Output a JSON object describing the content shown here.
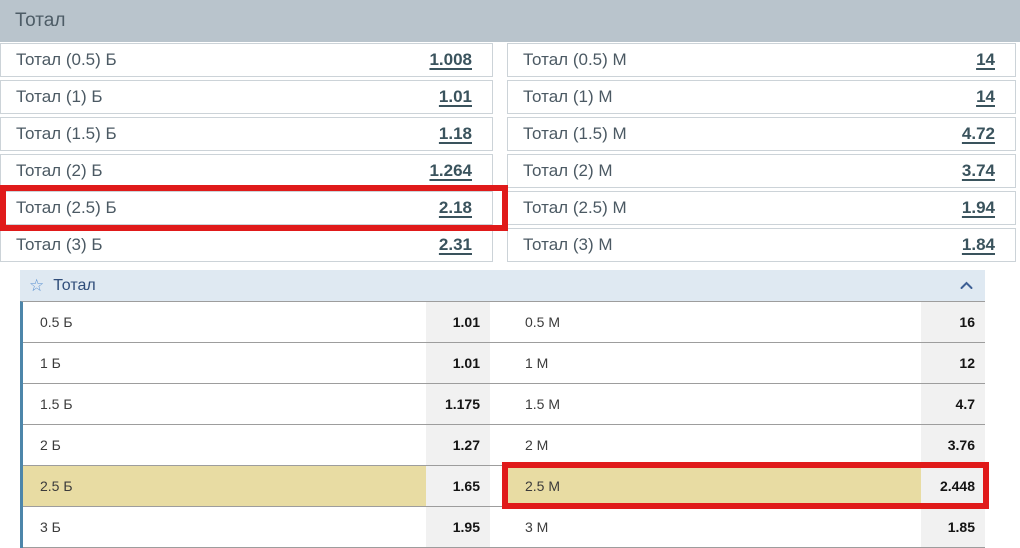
{
  "top_table": {
    "title": "Тотал",
    "rows": [
      {
        "b": {
          "label": "Тотал (0.5) Б",
          "value": "1.008"
        },
        "m": {
          "label": "Тотал (0.5) М",
          "value": "14"
        }
      },
      {
        "b": {
          "label": "Тотал (1) Б",
          "value": "1.01"
        },
        "m": {
          "label": "Тотал (1) М",
          "value": "14"
        }
      },
      {
        "b": {
          "label": "Тотал (1.5) Б",
          "value": "1.18"
        },
        "m": {
          "label": "Тотал (1.5) М",
          "value": "4.72"
        }
      },
      {
        "b": {
          "label": "Тотал (2) Б",
          "value": "1.264"
        },
        "m": {
          "label": "Тотал (2) М",
          "value": "3.74"
        }
      },
      {
        "b": {
          "label": "Тотал (2.5) Б",
          "value": "2.18",
          "marked": true
        },
        "m": {
          "label": "Тотал (2.5) М",
          "value": "1.94"
        }
      },
      {
        "b": {
          "label": "Тотал (3) Б",
          "value": "2.31"
        },
        "m": {
          "label": "Тотал (3) М",
          "value": "1.84"
        }
      }
    ]
  },
  "bottom_table": {
    "title": "Тотал",
    "favorite_icon": "star-outline",
    "favorite_glyph": "☆",
    "collapse_icon": "chevron-up",
    "rows": [
      {
        "highlighted": false,
        "b": {
          "label": "0.5 Б",
          "value": "1.01"
        },
        "m": {
          "label": "0.5 М",
          "value": "16"
        }
      },
      {
        "highlighted": false,
        "b": {
          "label": "1 Б",
          "value": "1.01"
        },
        "m": {
          "label": "1 М",
          "value": "12"
        }
      },
      {
        "highlighted": false,
        "b": {
          "label": "1.5 Б",
          "value": "1.175"
        },
        "m": {
          "label": "1.5 М",
          "value": "4.7"
        }
      },
      {
        "highlighted": false,
        "b": {
          "label": "2 Б",
          "value": "1.27"
        },
        "m": {
          "label": "2 М",
          "value": "3.76"
        }
      },
      {
        "highlighted": true,
        "b": {
          "label": "2.5 Б",
          "value": "1.65"
        },
        "m": {
          "label": "2.5 М",
          "value": "2.448",
          "marked": true
        }
      },
      {
        "highlighted": false,
        "b": {
          "label": "3 Б",
          "value": "1.95"
        },
        "m": {
          "label": "3 М",
          "value": "1.85"
        }
      }
    ]
  },
  "colors": {
    "top_header_bg": "#b9c4cc",
    "top_row_border": "#ccd3d8",
    "odds_link": "#3a535d",
    "bottom_header_bg": "#dfe9f2",
    "bottom_accent_border": "#4d86aa",
    "value_cell_bg": "#f1f1f1",
    "row_highlight": "#e8dca3",
    "annotation_red": "#e01a1a",
    "star_blue": "#5b92d2",
    "header_text_blue": "#2f4d7a"
  }
}
